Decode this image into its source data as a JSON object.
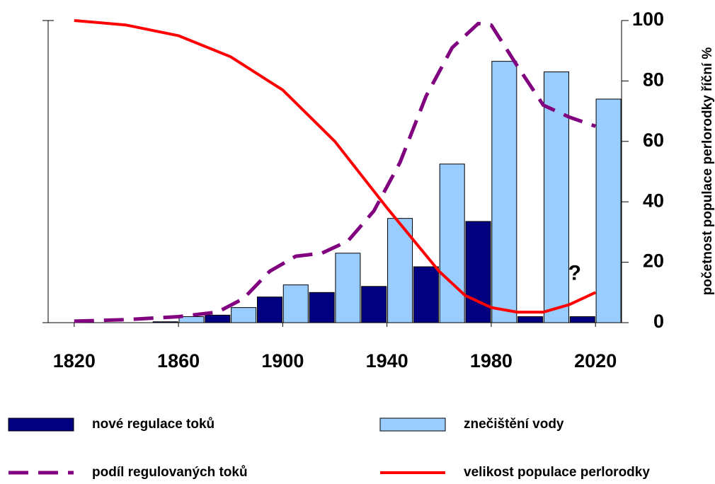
{
  "chart_data": {
    "type": "combo",
    "y_label": "početnost populace perlorodky říční %",
    "y_axis_position": "right",
    "xlim": [
      1810,
      2030
    ],
    "xticks": [
      1820,
      1860,
      1900,
      1940,
      1980,
      2020
    ],
    "ylim": [
      0,
      100
    ],
    "yticks": [
      0,
      20,
      40,
      60,
      80,
      100
    ],
    "annotations": [
      {
        "text": "?",
        "x": 2012,
        "y": 16,
        "color": "#ff0000"
      }
    ],
    "series": [
      {
        "name": "nové regulace toků",
        "type": "bar",
        "color": "#000080",
        "x": [
          1855,
          1875,
          1895,
          1915,
          1935,
          1955,
          1975,
          1995,
          2015
        ],
        "values": [
          0.3,
          2.5,
          8.5,
          10,
          12,
          18.5,
          33.5,
          2,
          2
        ]
      },
      {
        "name": "znečištění vody",
        "type": "bar",
        "color": "#99ccff",
        "x": [
          1865,
          1885,
          1905,
          1925,
          1945,
          1965,
          1985,
          2005,
          2025
        ],
        "values": [
          2,
          5,
          12.5,
          23,
          34.5,
          52.5,
          86.5,
          83,
          74
        ]
      },
      {
        "name": "podíl regulovaných toků",
        "type": "dashed-line",
        "color": "#800080",
        "x": [
          1820,
          1840,
          1860,
          1875,
          1885,
          1895,
          1905,
          1915,
          1925,
          1935,
          1945,
          1955,
          1965,
          1975,
          1980,
          1990,
          2000,
          2010,
          2020
        ],
        "values": [
          0.5,
          1,
          2,
          3.5,
          8,
          17,
          22,
          23,
          27,
          37,
          53,
          75,
          91,
          99,
          98.5,
          85,
          72,
          68,
          65
        ]
      },
      {
        "name": "velikost populace perlorodky",
        "type": "line",
        "color": "#ff0000",
        "x": [
          1820,
          1840,
          1860,
          1880,
          1900,
          1920,
          1940,
          1960,
          1970,
          1980,
          1990,
          2000,
          2010,
          2020
        ],
        "values": [
          100,
          98.5,
          95,
          88,
          77,
          60,
          38,
          17,
          9,
          5,
          3.5,
          3.5,
          6,
          10
        ]
      }
    ]
  }
}
